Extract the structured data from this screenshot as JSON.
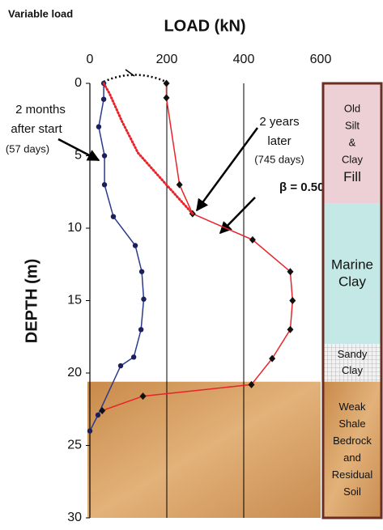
{
  "chart_data": {
    "type": "profile",
    "title": "LOAD  (kN)",
    "y_label": "DEPTH  (m)",
    "xlim": [
      0,
      600
    ],
    "xticks": [
      0,
      200,
      400,
      600
    ],
    "ylim": [
      0,
      30
    ],
    "yticks": [
      0,
      5,
      10,
      15,
      20,
      25,
      30
    ],
    "grid_x": [
      200,
      400
    ],
    "annotations": {
      "variable_load": "Variable load",
      "beta": "β = 0.50"
    },
    "series": [
      {
        "label": [
          "2 months",
          "after start",
          "(57 days)"
        ],
        "color": "#2b3a8c",
        "marker": "circle",
        "line": "solid",
        "load": [
          36,
          36,
          23,
          38,
          38,
          61,
          118,
          135,
          140,
          133,
          114,
          80,
          21,
          0
        ],
        "depth": [
          0,
          1.1,
          3,
          5,
          7,
          9.2,
          11.2,
          13,
          14.9,
          17,
          18.9,
          19.5,
          22.9,
          24
        ]
      },
      {
        "label": [
          "2 years",
          "later",
          "(745 days)"
        ],
        "color": "#e8232a",
        "marker": "diamond",
        "line": "solid",
        "load": [
          199,
          199,
          233,
          267,
          423,
          521,
          527,
          521,
          474,
          420,
          138,
          32
        ],
        "depth": [
          0,
          1,
          7,
          9,
          10.8,
          13,
          15,
          17,
          19,
          20.8,
          21.6,
          22.6
        ]
      },
      {
        "color": "#e8232a",
        "marker": "none",
        "line": "dotted",
        "load": [
          36,
          51,
          83,
          125,
          199,
          267
        ],
        "depth": [
          0,
          0.7,
          2.6,
          4.8,
          7,
          9
        ]
      }
    ],
    "layers": [
      {
        "lines": [
          "Old",
          "Silt",
          "&",
          "Clay",
          "Fill"
        ],
        "top": 0,
        "bottom": 8.3,
        "color": "#ecd0d6"
      },
      {
        "lines": [
          "Marine",
          "Clay"
        ],
        "top": 8.3,
        "bottom": 18,
        "color": "#c4e8e6"
      },
      {
        "lines": [
          "Sandy",
          "Clay"
        ],
        "top": 18,
        "bottom": 20.6,
        "color": "#e4e4e4"
      },
      {
        "lines": [
          "Weak",
          "Shale",
          "Bedrock",
          "and",
          "Residual",
          "Soil"
        ],
        "top": 20.6,
        "bottom": 30,
        "color": "#d49a5c"
      }
    ]
  }
}
